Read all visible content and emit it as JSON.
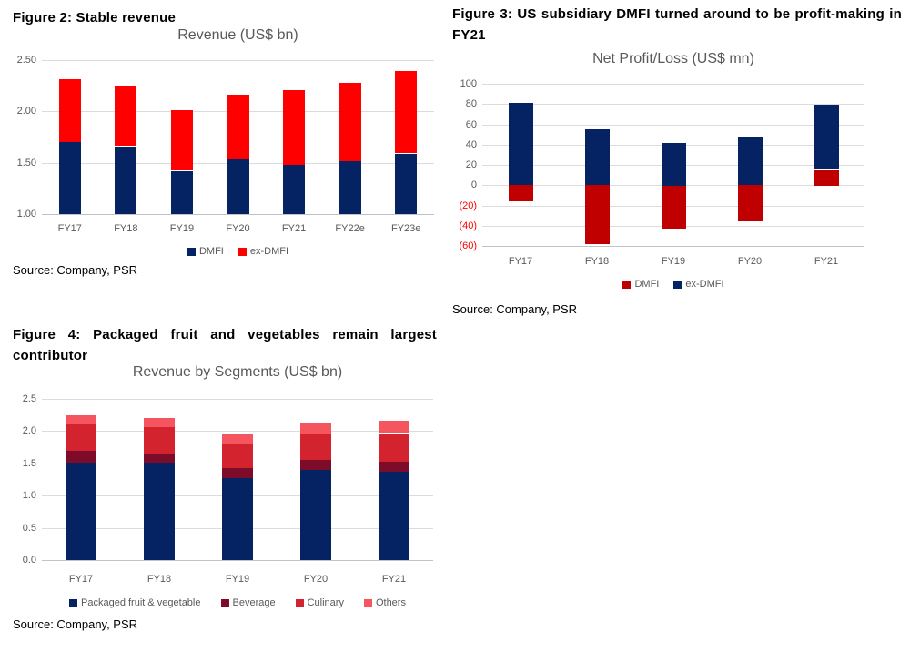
{
  "figures": [
    {
      "heading": "Figure 2: Stable revenue",
      "source": "Source: Company, PSR"
    },
    {
      "heading": "Figure 3: US subsidiary DMFI turned around to be profit-making in FY21",
      "source": "Source: Company, PSR"
    },
    {
      "heading": "Figure 4: Packaged fruit and vegetables remain largest contributor",
      "source": "Source: Company, PSR"
    }
  ],
  "chart_data": [
    {
      "type": "bar",
      "stacked": true,
      "title": "Revenue (US$ bn)",
      "categories": [
        "FY17",
        "FY18",
        "FY19",
        "FY20",
        "FY21",
        "FY22e",
        "FY23e"
      ],
      "series": [
        {
          "name": "DMFI",
          "color": "#052263",
          "values": [
            1.7,
            1.66,
            1.42,
            1.53,
            1.48,
            1.52,
            1.59
          ]
        },
        {
          "name": "ex-DMFI",
          "color": "#FE0000",
          "values": [
            0.61,
            0.59,
            0.59,
            0.63,
            0.73,
            0.76,
            0.8
          ]
        }
      ],
      "totals": [
        2.31,
        2.25,
        2.01,
        2.16,
        2.21,
        2.28,
        2.39
      ],
      "ylim": [
        1.0,
        2.5
      ],
      "yticks": [
        {
          "v": 2.5,
          "label": "2.50"
        },
        {
          "v": 2.0,
          "label": "2.00"
        },
        {
          "v": 1.5,
          "label": "1.50"
        },
        {
          "v": 1.0,
          "label": "1.00"
        }
      ],
      "grid": true,
      "legend_position": "bottom"
    },
    {
      "type": "bar",
      "stacked": true,
      "title": "Net Profit/Loss (US$ mn)",
      "categories": [
        "FY17",
        "FY18",
        "FY19",
        "FY20",
        "FY21"
      ],
      "series": [
        {
          "name": "DMFI",
          "color": "#C00000",
          "values": [
            -16,
            -58,
            -43,
            -36,
            15
          ]
        },
        {
          "name": "ex-DMFI",
          "color": "#052263",
          "values": [
            81,
            55,
            42,
            48,
            64
          ]
        }
      ],
      "ylim": [
        -60,
        100
      ],
      "yticks": [
        {
          "v": 100,
          "label": "100"
        },
        {
          "v": 80,
          "label": "80"
        },
        {
          "v": 60,
          "label": "60"
        },
        {
          "v": 40,
          "label": "40"
        },
        {
          "v": 20,
          "label": "20"
        },
        {
          "v": 0,
          "label": "0"
        },
        {
          "v": -20,
          "label": "(20)",
          "color": "#FF0000"
        },
        {
          "v": -40,
          "label": "(40)",
          "color": "#FF0000"
        },
        {
          "v": -60,
          "label": "(60)",
          "color": "#FF0000"
        }
      ],
      "grid": true,
      "legend_position": "bottom"
    },
    {
      "type": "bar",
      "stacked": true,
      "title": "Revenue by Segments (US$ bn)",
      "categories": [
        "FY17",
        "FY18",
        "FY19",
        "FY20",
        "FY21"
      ],
      "series": [
        {
          "name": "Packaged fruit & vegetable",
          "color": "#052263",
          "values": [
            1.52,
            1.51,
            1.28,
            1.4,
            1.37
          ]
        },
        {
          "name": "Beverage",
          "color": "#7D0C2A",
          "values": [
            0.18,
            0.14,
            0.15,
            0.15,
            0.16
          ]
        },
        {
          "name": "Culinary",
          "color": "#D2232E",
          "values": [
            0.41,
            0.41,
            0.37,
            0.41,
            0.44
          ]
        },
        {
          "name": "Others",
          "color": "#F4555E",
          "values": [
            0.14,
            0.14,
            0.15,
            0.17,
            0.19
          ]
        }
      ],
      "totals": [
        2.25,
        2.2,
        1.95,
        2.13,
        2.16
      ],
      "ylim": [
        0.0,
        2.5
      ],
      "yticks": [
        {
          "v": 2.5,
          "label": "2.5"
        },
        {
          "v": 2.0,
          "label": "2.0"
        },
        {
          "v": 1.5,
          "label": "1.5"
        },
        {
          "v": 1.0,
          "label": "1.0"
        },
        {
          "v": 0.5,
          "label": "0.5"
        },
        {
          "v": 0.0,
          "label": "0.0"
        }
      ],
      "grid": true,
      "legend_position": "bottom"
    }
  ]
}
